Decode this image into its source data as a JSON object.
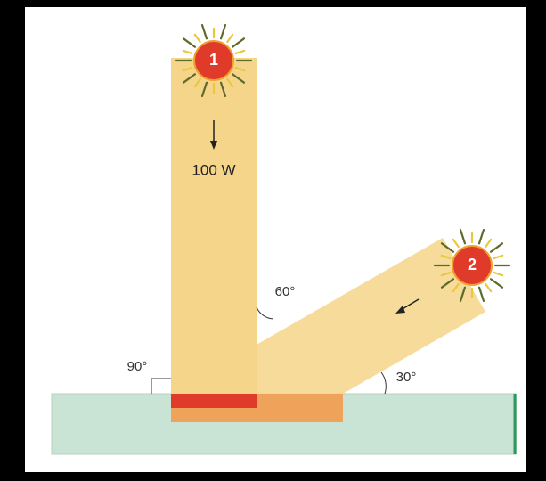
{
  "suns": [
    {
      "label": "1"
    },
    {
      "label": "2"
    }
  ],
  "power_label": "100 W",
  "angles": {
    "vertical": "90°",
    "incidence": "60°",
    "elevation": "30°"
  }
}
